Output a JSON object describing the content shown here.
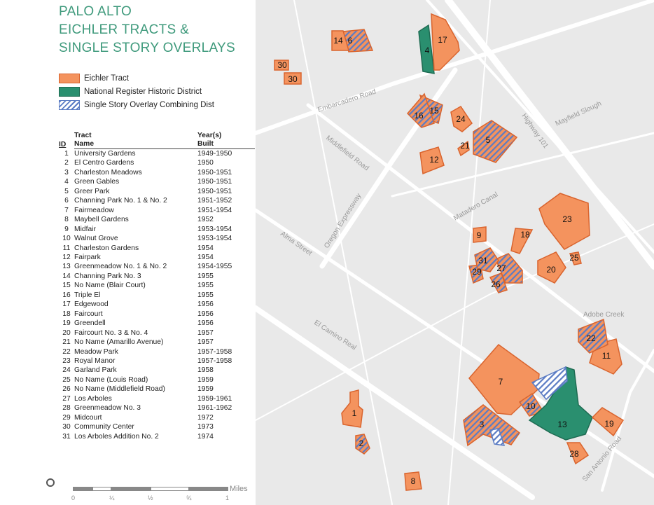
{
  "title": [
    "PALO ALTO",
    "EICHLER TRACTS &",
    "SINGLE STORY OVERLAYS"
  ],
  "legend": {
    "eichler": "Eichler Tract",
    "nrhd": "National Register Historic District",
    "overlay": "Single Story Overlay Combining Dist"
  },
  "table": {
    "headers": {
      "id": "ID",
      "name1": "Tract",
      "name2": "Name",
      "year1": "Year(s)",
      "year2": "Built"
    },
    "rows": [
      [
        "1",
        "University Gardens",
        "1949-1950"
      ],
      [
        "2",
        "El Centro Gardens",
        "1950"
      ],
      [
        "3",
        "Charleston Meadows",
        "1950-1951"
      ],
      [
        "4",
        "Green Gables",
        "1950-1951"
      ],
      [
        "5",
        "Greer Park",
        "1950-1951"
      ],
      [
        "6",
        "Channing Park No. 1 & No. 2",
        "1951-1952"
      ],
      [
        "7",
        "Fairmeadow",
        "1951-1954"
      ],
      [
        "8",
        "Maybell Gardens",
        "1952"
      ],
      [
        "9",
        "Midfair",
        "1953-1954"
      ],
      [
        "10",
        "Walnut Grove",
        "1953-1954"
      ],
      [
        "11",
        "Charleston Gardens",
        "1954"
      ],
      [
        "12",
        "Fairpark",
        "1954"
      ],
      [
        "13",
        "Greenmeadow No. 1 & No. 2",
        "1954-1955"
      ],
      [
        "14",
        "Channing Park No. 3",
        "1955"
      ],
      [
        "15",
        "No Name (Blair Court)",
        "1955"
      ],
      [
        "16",
        "Triple El",
        "1955"
      ],
      [
        "17",
        "Edgewood",
        "1956"
      ],
      [
        "18",
        "Faircourt",
        "1956"
      ],
      [
        "19",
        "Greendell",
        "1956"
      ],
      [
        "20",
        "Faircourt No. 3 & No. 4",
        "1957"
      ],
      [
        "21",
        "No Name (Amarillo Avenue)",
        "1957"
      ],
      [
        "22",
        "Meadow Park",
        "1957-1958"
      ],
      [
        "23",
        "Royal Manor",
        "1957-1958"
      ],
      [
        "24",
        "Garland Park",
        "1958"
      ],
      [
        "25",
        "No Name (Louis Road)",
        "1959"
      ],
      [
        "26",
        "No Name (Middlefield Road)",
        "1959"
      ],
      [
        "27",
        "Los Arboles",
        "1959-1961"
      ],
      [
        "28",
        "Greenmeadow No. 3",
        "1961-1962"
      ],
      [
        "29",
        "Midcourt",
        "1972"
      ],
      [
        "30",
        "Community Center",
        "1973"
      ],
      [
        "31",
        "Los Arboles Addition No. 2",
        "1974"
      ]
    ]
  },
  "scale": {
    "unit": "Miles",
    "ticks": [
      "0",
      "¼",
      "½",
      "¾",
      "1"
    ]
  },
  "roads": {
    "embarcadero": "Embarcadero Road",
    "middlefield": "Middlefield Road",
    "oregon": "Oregon Expressway",
    "alma": "Alma Street",
    "elcamino": "El Camino Real",
    "hwy101": "Highway 101",
    "matadero": "Matadero Canal",
    "adobe": "Adobe Creek",
    "sanantonio": "San Antonio Road",
    "mayfield": "Mayfield Slough"
  },
  "colors": {
    "eichler": "#f4935e",
    "eichler_stroke": "#d9642e",
    "nrhd": "#2a8f6f",
    "overlay": "#5b7cc4",
    "map_bg": "#e9e9e9",
    "road": "#ffffff"
  }
}
